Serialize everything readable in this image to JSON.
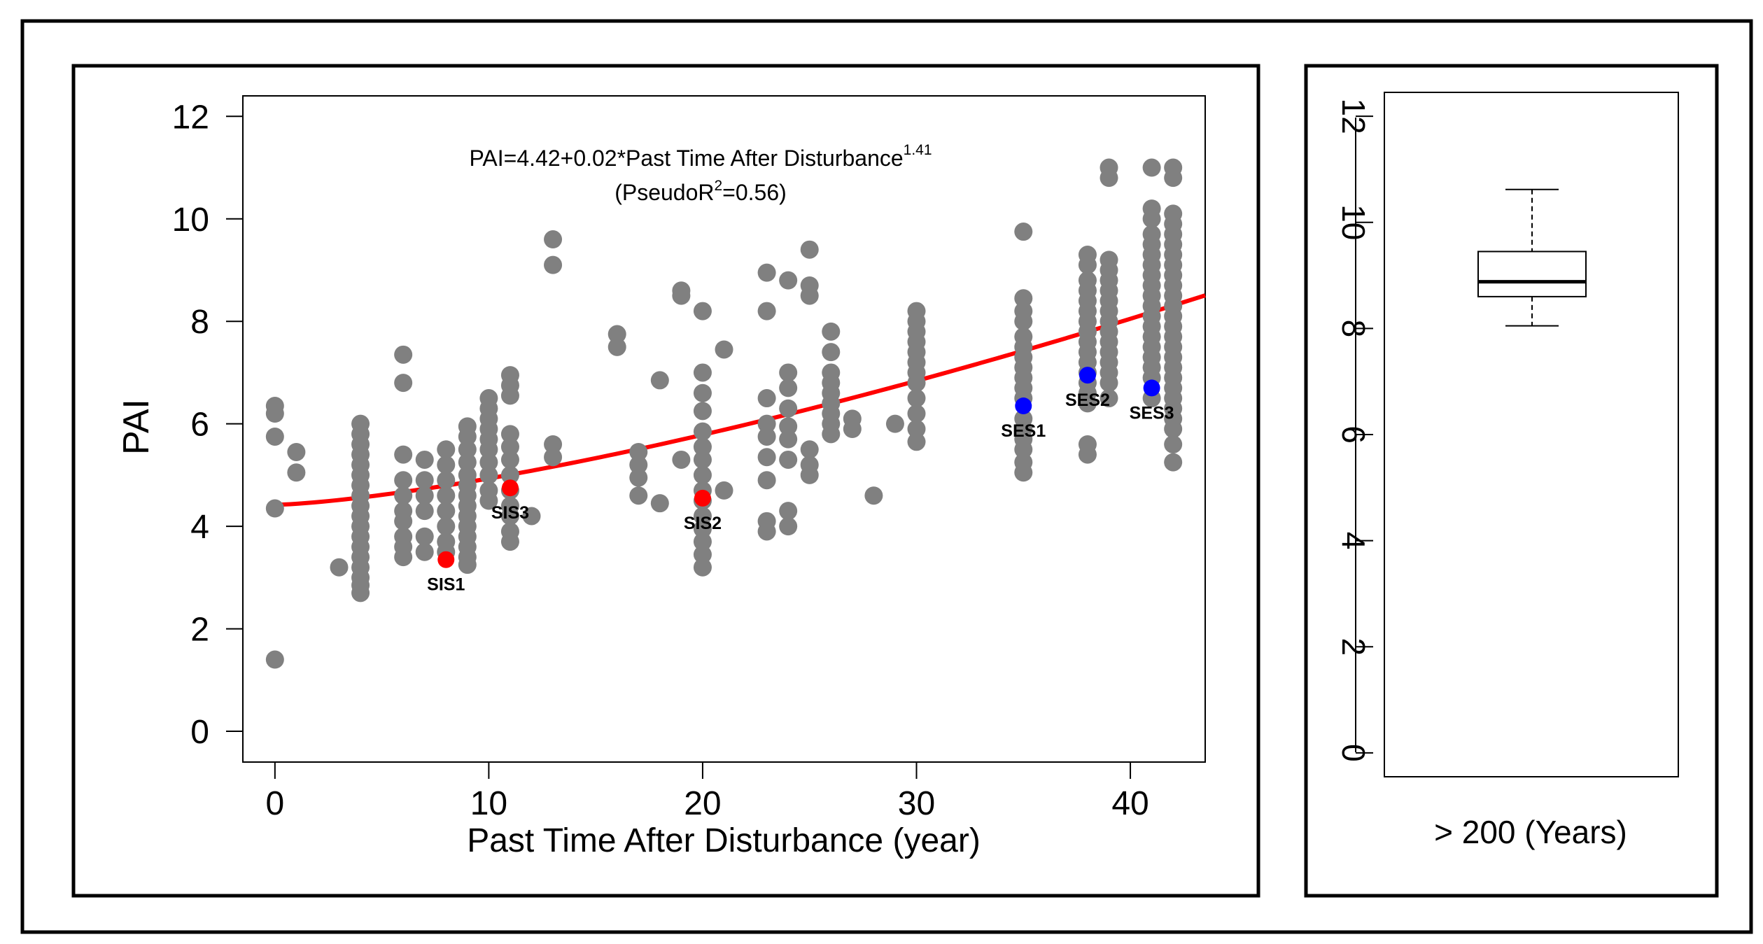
{
  "chart_data": [
    {
      "type": "scatter",
      "title": "",
      "xlabel": "Past Time After Disturbance (year)",
      "ylabel": "PAI",
      "xlim": [
        -1.5,
        43.5
      ],
      "ylim": [
        -0.6,
        12.4
      ],
      "xticks": [
        0,
        10,
        20,
        30,
        40
      ],
      "yticks": [
        0,
        2,
        4,
        6,
        8,
        10,
        12
      ],
      "grid": false,
      "equation": {
        "prefix": "PAI=4.42+0.02*Past Time After Disturbance",
        "exponent": "1.41",
        "r2_open": "(PseudoR",
        "r2_sup": "2",
        "r2_close": "=0.56)"
      },
      "fit": {
        "a": 4.42,
        "b": 0.02,
        "c": 1.41,
        "x_from": 0,
        "x_to": 43.5,
        "color": "#ff0000"
      },
      "point_color": "#808080",
      "points": [
        [
          0,
          6.35
        ],
        [
          0,
          6.2
        ],
        [
          0,
          5.75
        ],
        [
          0,
          4.35
        ],
        [
          0,
          1.4
        ],
        [
          1,
          5.45
        ],
        [
          1,
          5.05
        ],
        [
          3,
          3.2
        ],
        [
          4,
          6.0
        ],
        [
          4,
          5.8
        ],
        [
          4,
          5.6
        ],
        [
          4,
          5.4
        ],
        [
          4,
          5.2
        ],
        [
          4,
          5.0
        ],
        [
          4,
          4.8
        ],
        [
          4,
          4.6
        ],
        [
          4,
          4.4
        ],
        [
          4,
          4.2
        ],
        [
          4,
          4.0
        ],
        [
          4,
          3.8
        ],
        [
          4,
          3.6
        ],
        [
          4,
          3.4
        ],
        [
          4,
          3.2
        ],
        [
          4,
          3.0
        ],
        [
          4,
          2.85
        ],
        [
          4,
          2.7
        ],
        [
          6,
          7.35
        ],
        [
          6,
          6.8
        ],
        [
          6,
          5.4
        ],
        [
          6,
          4.9
        ],
        [
          6,
          4.6
        ],
        [
          6,
          4.3
        ],
        [
          6,
          4.1
        ],
        [
          6,
          3.8
        ],
        [
          6,
          3.6
        ],
        [
          6,
          3.4
        ],
        [
          7,
          5.3
        ],
        [
          7,
          4.9
        ],
        [
          7,
          4.6
        ],
        [
          7,
          4.3
        ],
        [
          7,
          3.8
        ],
        [
          7,
          3.5
        ],
        [
          8,
          5.5
        ],
        [
          8,
          5.2
        ],
        [
          8,
          4.9
        ],
        [
          8,
          4.6
        ],
        [
          8,
          4.3
        ],
        [
          8,
          4.0
        ],
        [
          8,
          3.7
        ],
        [
          8,
          3.5
        ],
        [
          9,
          5.95
        ],
        [
          9,
          5.75
        ],
        [
          9,
          5.5
        ],
        [
          9,
          5.25
        ],
        [
          9,
          5.0
        ],
        [
          9,
          4.8
        ],
        [
          9,
          4.6
        ],
        [
          9,
          4.4
        ],
        [
          9,
          4.2
        ],
        [
          9,
          4.0
        ],
        [
          9,
          3.8
        ],
        [
          9,
          3.6
        ],
        [
          9,
          3.4
        ],
        [
          9,
          3.25
        ],
        [
          10,
          6.5
        ],
        [
          10,
          6.3
        ],
        [
          10,
          6.1
        ],
        [
          10,
          5.9
        ],
        [
          10,
          5.7
        ],
        [
          10,
          5.5
        ],
        [
          10,
          5.25
        ],
        [
          10,
          5.0
        ],
        [
          10,
          4.7
        ],
        [
          10,
          4.5
        ],
        [
          11,
          6.95
        ],
        [
          11,
          6.75
        ],
        [
          11,
          6.55
        ],
        [
          11,
          5.8
        ],
        [
          11,
          5.55
        ],
        [
          11,
          5.3
        ],
        [
          11,
          5.0
        ],
        [
          11,
          4.7
        ],
        [
          11,
          4.4
        ],
        [
          11,
          4.2
        ],
        [
          11,
          3.9
        ],
        [
          11,
          3.7
        ],
        [
          12,
          4.2
        ],
        [
          13,
          9.6
        ],
        [
          13,
          9.1
        ],
        [
          13,
          5.6
        ],
        [
          13,
          5.35
        ],
        [
          16,
          7.75
        ],
        [
          16,
          7.5
        ],
        [
          17,
          5.45
        ],
        [
          17,
          5.2
        ],
        [
          17,
          4.95
        ],
        [
          17,
          4.6
        ],
        [
          18,
          6.85
        ],
        [
          18,
          4.45
        ],
        [
          19,
          8.6
        ],
        [
          19,
          8.5
        ],
        [
          19,
          5.3
        ],
        [
          20,
          8.2
        ],
        [
          20,
          7.0
        ],
        [
          20,
          6.6
        ],
        [
          20,
          6.25
        ],
        [
          20,
          5.85
        ],
        [
          20,
          5.55
        ],
        [
          20,
          5.3
        ],
        [
          20,
          5.0
        ],
        [
          20,
          4.7
        ],
        [
          20,
          4.5
        ],
        [
          20,
          4.2
        ],
        [
          20,
          3.95
        ],
        [
          20,
          3.7
        ],
        [
          20,
          3.45
        ],
        [
          20,
          3.2
        ],
        [
          21,
          7.45
        ],
        [
          21,
          4.7
        ],
        [
          23,
          8.95
        ],
        [
          23,
          8.2
        ],
        [
          23,
          6.5
        ],
        [
          23,
          6.0
        ],
        [
          23,
          5.75
        ],
        [
          23,
          5.35
        ],
        [
          23,
          4.9
        ],
        [
          23,
          4.1
        ],
        [
          23,
          3.9
        ],
        [
          24,
          8.8
        ],
        [
          24,
          7.0
        ],
        [
          24,
          6.7
        ],
        [
          24,
          6.3
        ],
        [
          24,
          5.95
        ],
        [
          24,
          5.7
        ],
        [
          24,
          5.3
        ],
        [
          24,
          4.3
        ],
        [
          24,
          4.0
        ],
        [
          25,
          9.4
        ],
        [
          25,
          8.7
        ],
        [
          25,
          8.5
        ],
        [
          25,
          5.5
        ],
        [
          25,
          5.2
        ],
        [
          25,
          5.0
        ],
        [
          26,
          7.8
        ],
        [
          26,
          7.4
        ],
        [
          26,
          7.0
        ],
        [
          26,
          6.8
        ],
        [
          26,
          6.6
        ],
        [
          26,
          6.4
        ],
        [
          26,
          6.2
        ],
        [
          26,
          6.0
        ],
        [
          26,
          5.8
        ],
        [
          27,
          6.1
        ],
        [
          27,
          5.9
        ],
        [
          28,
          4.6
        ],
        [
          29,
          6.0
        ],
        [
          30,
          8.2
        ],
        [
          30,
          8.0
        ],
        [
          30,
          7.8
        ],
        [
          30,
          7.6
        ],
        [
          30,
          7.4
        ],
        [
          30,
          7.2
        ],
        [
          30,
          7.0
        ],
        [
          30,
          6.8
        ],
        [
          30,
          6.5
        ],
        [
          30,
          6.2
        ],
        [
          30,
          5.9
        ],
        [
          30,
          5.65
        ],
        [
          35,
          9.75
        ],
        [
          35,
          8.45
        ],
        [
          35,
          8.2
        ],
        [
          35,
          8.0
        ],
        [
          35,
          7.7
        ],
        [
          35,
          7.5
        ],
        [
          35,
          7.3
        ],
        [
          35,
          7.1
        ],
        [
          35,
          6.9
        ],
        [
          35,
          6.7
        ],
        [
          35,
          6.5
        ],
        [
          35,
          6.1
        ],
        [
          35,
          5.9
        ],
        [
          35,
          5.7
        ],
        [
          35,
          5.5
        ],
        [
          35,
          5.25
        ],
        [
          35,
          5.05
        ],
        [
          38,
          9.3
        ],
        [
          38,
          9.1
        ],
        [
          38,
          8.8
        ],
        [
          38,
          8.6
        ],
        [
          38,
          8.4
        ],
        [
          38,
          8.2
        ],
        [
          38,
          8.0
        ],
        [
          38,
          7.8
        ],
        [
          38,
          7.6
        ],
        [
          38,
          7.4
        ],
        [
          38,
          7.2
        ],
        [
          38,
          7.0
        ],
        [
          38,
          6.8
        ],
        [
          38,
          6.6
        ],
        [
          38,
          6.4
        ],
        [
          38,
          5.6
        ],
        [
          38,
          5.4
        ],
        [
          39,
          11.0
        ],
        [
          39,
          10.8
        ],
        [
          39,
          9.2
        ],
        [
          39,
          9.0
        ],
        [
          39,
          8.8
        ],
        [
          39,
          8.6
        ],
        [
          39,
          8.4
        ],
        [
          39,
          8.2
        ],
        [
          39,
          8.0
        ],
        [
          39,
          7.8
        ],
        [
          39,
          7.6
        ],
        [
          39,
          7.4
        ],
        [
          39,
          7.2
        ],
        [
          39,
          7.0
        ],
        [
          39,
          6.8
        ],
        [
          39,
          6.5
        ],
        [
          41,
          11.0
        ],
        [
          41,
          10.2
        ],
        [
          41,
          10.0
        ],
        [
          41,
          9.7
        ],
        [
          41,
          9.5
        ],
        [
          41,
          9.3
        ],
        [
          41,
          9.1
        ],
        [
          41,
          8.9
        ],
        [
          41,
          8.7
        ],
        [
          41,
          8.5
        ],
        [
          41,
          8.3
        ],
        [
          41,
          8.1
        ],
        [
          41,
          7.9
        ],
        [
          41,
          7.7
        ],
        [
          41,
          7.5
        ],
        [
          41,
          7.3
        ],
        [
          41,
          7.1
        ],
        [
          41,
          6.9
        ],
        [
          41,
          6.5
        ],
        [
          42,
          11.0
        ],
        [
          42,
          10.8
        ],
        [
          42,
          10.1
        ],
        [
          42,
          9.9
        ],
        [
          42,
          9.7
        ],
        [
          42,
          9.5
        ],
        [
          42,
          9.3
        ],
        [
          42,
          9.1
        ],
        [
          42,
          8.9
        ],
        [
          42,
          8.7
        ],
        [
          42,
          8.5
        ],
        [
          42,
          8.3
        ],
        [
          42,
          8.1
        ],
        [
          42,
          7.9
        ],
        [
          42,
          7.7
        ],
        [
          42,
          7.5
        ],
        [
          42,
          7.3
        ],
        [
          42,
          7.1
        ],
        [
          42,
          6.9
        ],
        [
          42,
          6.7
        ],
        [
          42,
          6.5
        ],
        [
          42,
          6.3
        ],
        [
          42,
          6.1
        ],
        [
          42,
          5.9
        ],
        [
          42,
          5.6
        ],
        [
          42,
          5.25
        ]
      ],
      "highlighted": [
        {
          "label": "SIS1",
          "x": 8,
          "y": 3.35,
          "color": "#ff0000"
        },
        {
          "label": "SIS3",
          "x": 11,
          "y": 4.75,
          "color": "#ff0000"
        },
        {
          "label": "SIS2",
          "x": 20,
          "y": 4.55,
          "color": "#ff0000"
        },
        {
          "label": "SES1",
          "x": 35,
          "y": 6.35,
          "color": "#0000ff"
        },
        {
          "label": "SES2",
          "x": 38,
          "y": 6.95,
          "color": "#0000ff"
        },
        {
          "label": "SES3",
          "x": 41,
          "y": 6.7,
          "color": "#0000ff"
        }
      ]
    },
    {
      "type": "box",
      "category": "> 200 (Years)",
      "ylim": [
        -0.45,
        12.45
      ],
      "yticks": [
        0,
        2,
        4,
        6,
        8,
        10,
        12
      ],
      "min": 8.05,
      "q1": 8.6,
      "median": 8.88,
      "q3": 9.45,
      "max": 10.62
    }
  ]
}
